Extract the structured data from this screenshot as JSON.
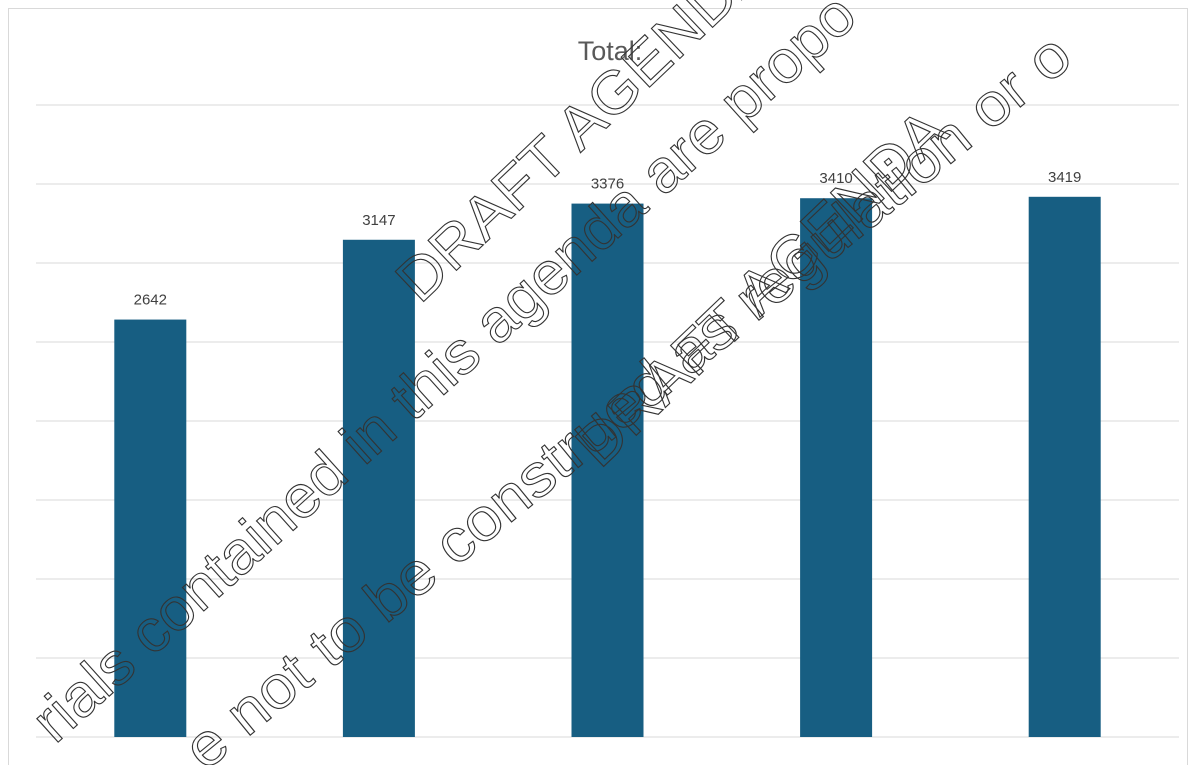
{
  "chart_data": {
    "type": "bar",
    "title": "Total:",
    "categories": [
      null,
      null,
      null,
      null,
      null
    ],
    "values": [
      2642,
      3147,
      3376,
      3410,
      3419
    ],
    "color": "#175e82",
    "ylim": [
      0,
      4000
    ],
    "yticks": [
      0,
      500,
      1000,
      1500,
      2000,
      2500,
      3000,
      3500,
      4000
    ],
    "grid": true,
    "annotations": [
      "DRAFT AGENDA",
      "rials contained in this agenda are propo",
      "e not to be construed as regulation or o",
      "DRAFT AGENDA"
    ]
  }
}
